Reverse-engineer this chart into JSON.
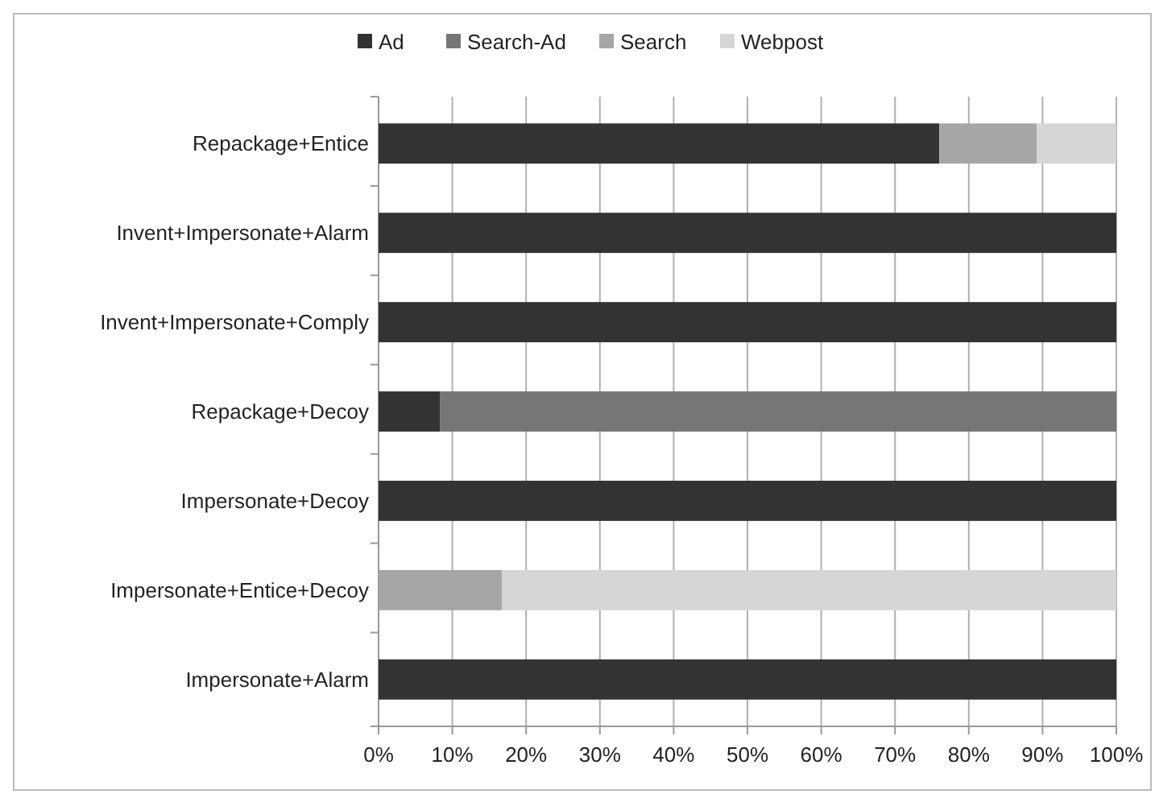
{
  "chart_data": {
    "type": "bar",
    "orientation": "horizontal",
    "stacked": true,
    "categories": [
      "Repackage+Entice",
      "Invent+Impersonate+Alarm",
      "Invent+Impersonate+Comply",
      "Repackage+Decoy",
      "Impersonate+Decoy",
      "Impersonate+Entice+Decoy",
      "Impersonate+Alarm"
    ],
    "series": [
      {
        "name": "Ad",
        "color": "#333333",
        "values": [
          76,
          100,
          100,
          8.3,
          100,
          0,
          100
        ]
      },
      {
        "name": "Search-Ad",
        "color": "#767676",
        "values": [
          0,
          0,
          0,
          91.7,
          0,
          0,
          0
        ]
      },
      {
        "name": "Search",
        "color": "#a6a6a6",
        "values": [
          13.2,
          0,
          0,
          0,
          0,
          16.7,
          0
        ]
      },
      {
        "name": "Webpost",
        "color": "#d6d6d6",
        "values": [
          10.8,
          0,
          0,
          0,
          0,
          83.3,
          0
        ]
      }
    ],
    "xlim": [
      0,
      100
    ],
    "xticks": [
      {
        "value": 0,
        "label": "0%"
      },
      {
        "value": 10,
        "label": "10%"
      },
      {
        "value": 20,
        "label": "20%"
      },
      {
        "value": 30,
        "label": "30%"
      },
      {
        "value": 40,
        "label": "40%"
      },
      {
        "value": 50,
        "label": "50%"
      },
      {
        "value": 60,
        "label": "60%"
      },
      {
        "value": 70,
        "label": "70%"
      },
      {
        "value": 80,
        "label": "80%"
      },
      {
        "value": 90,
        "label": "90%"
      },
      {
        "value": 100,
        "label": "100%"
      }
    ],
    "grid": "x",
    "legend": "top"
  }
}
